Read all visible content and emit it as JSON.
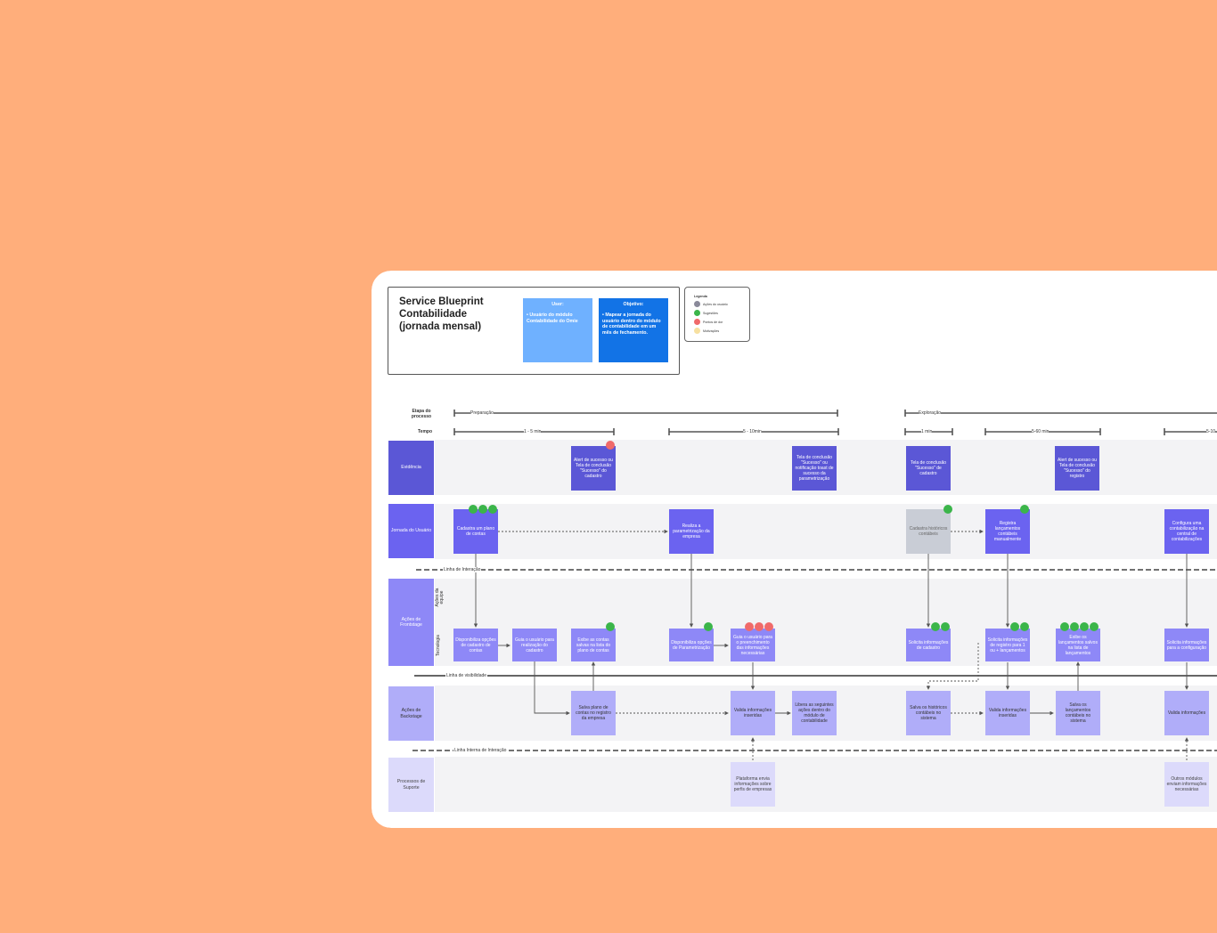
{
  "header": {
    "title": "Service Blueprint\nContabilidade\n(jornada mensal)",
    "user_card": {
      "heading": "User:",
      "body": "• Usuário do módulo Contabilidade do Omie"
    },
    "goal_card": {
      "heading": "Objetivo:",
      "body": "• Mapear a jornada do usuário dentro do módulo de contabilidade em um mês de fechamento."
    }
  },
  "legend": {
    "title": "Legenda",
    "items": [
      {
        "label": "Ações do usuário",
        "color": "#8A8A9A"
      },
      {
        "label": "Sugestões",
        "color": "#3BB54A"
      },
      {
        "label": "Pontos de dor",
        "color": "#F06A6A"
      },
      {
        "label": "Motivações",
        "color": "#F7E0A0"
      }
    ]
  },
  "rows": {
    "stage": "Etapa do processo",
    "time": "Tempo",
    "evidence": "Evidência",
    "journey": "Jornada do Usuário",
    "frontstage": "Ações de Frontstage",
    "team_actions": "Ações da equipe",
    "technology": "Tecnologia",
    "backstage": "Ações de Backstage",
    "support": "Processos de Suporte"
  },
  "lines": {
    "interaction": "Linha de Interação",
    "visibility": "Linha de visibilidade",
    "internal": "Linha Interna de Interação"
  },
  "stages": [
    {
      "label": "Preparação"
    },
    {
      "label": "Exploração"
    }
  ],
  "times": [
    "1 - 5 min",
    "5 - 10min",
    "1 min",
    "5-60 min",
    "5-10"
  ],
  "evidence": [
    "Alert de sucesso ou Tela de conclusão \"Sucesso\" do cadastro",
    "Tela de conclusão \"Sucesso\" ou notificação toast de sucesso da parametrização",
    "Tela de conclusão \"Sucesso\" de cadastro",
    "Alert de sucesso ou Tela de conclusão \"Sucesso\" do registro"
  ],
  "journey": [
    "Cadastra um plano de contas",
    "Realiza a parametrização da empresa",
    "Cadastra históricos contábeis",
    "Registra lançamentos contábeis manualmente",
    "Configura uma contabilização na central de contabilizações"
  ],
  "frontstage": [
    "Disponibiliza opções de cadastro de contas",
    "Guia o usuário para realização do cadastro",
    "Exibe as contas salvas na lista do plano de contas",
    "Disponibiliza opções de Parametrização",
    "Guia o usuário para o preenchimento das informações necessárias",
    "Solicita informações de cadastro",
    "Solicita informações de registro para 1 ou + lançamentos",
    "Exibe os lançamentos salvos na lista de lançamentos",
    "Solicita informações para a configuração"
  ],
  "backstage": [
    "Salva plano de contas no registro da empresa",
    "Valida informações inseridas",
    "Libera as seguintes ações dentro do módulo de contabilidade",
    "Salva os históricos contábeis no sistema",
    "Valida informações inseridas",
    "Salva os lançamentos contábeis no sistema",
    "Valida informações"
  ],
  "support": [
    "Plataforma envia informações sobre perfis de empresas",
    "Outros módulos enviam informações necessárias"
  ],
  "colors": {
    "background": "#FFAE7B",
    "evidence": "#5B57D6",
    "journey": "#6B63F0",
    "frontstage": "#8E88F7",
    "backstage": "#B0ADF9",
    "support": "#DCDAFB",
    "user_card": "#6FB1FF",
    "goal_card": "#1273E6"
  }
}
